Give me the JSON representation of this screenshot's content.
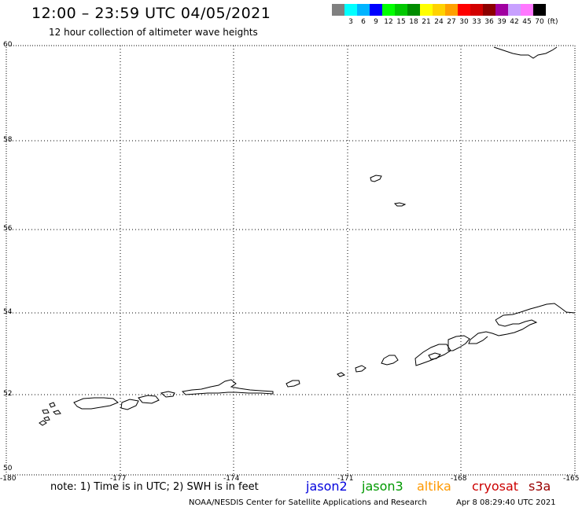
{
  "header": {
    "title": "12:00 – 23:59 UTC 04/05/2021",
    "subtitle": "12 hour collection of altimeter wave heights"
  },
  "legend": {
    "unit": "(ft)",
    "bins": [
      {
        "label": "",
        "color": "#808080"
      },
      {
        "label": "3",
        "color": "#00ffff"
      },
      {
        "label": "6",
        "color": "#00b4ff"
      },
      {
        "label": "9",
        "color": "#0000ff"
      },
      {
        "label": "12",
        "color": "#00ff00"
      },
      {
        "label": "15",
        "color": "#00c800"
      },
      {
        "label": "18",
        "color": "#008c00"
      },
      {
        "label": "21",
        "color": "#ffff00"
      },
      {
        "label": "24",
        "color": "#ffd200"
      },
      {
        "label": "27",
        "color": "#ffa000"
      },
      {
        "label": "30",
        "color": "#ff0000"
      },
      {
        "label": "33",
        "color": "#d20000"
      },
      {
        "label": "36",
        "color": "#8c0000"
      },
      {
        "label": "39",
        "color": "#a000a0"
      },
      {
        "label": "42",
        "color": "#c8a0ff"
      },
      {
        "label": "45",
        "color": "#ff78ff"
      },
      {
        "label": "70",
        "color": "#000000"
      }
    ]
  },
  "map": {
    "lat_labels": [
      "60",
      "58",
      "56",
      "54",
      "52",
      "50"
    ],
    "lon_labels": [
      "-180",
      "-177",
      "-174",
      "-171",
      "-168",
      "-165"
    ]
  },
  "notes": {
    "note": "note: 1) Time is in UTC; 2) SWH is in feet"
  },
  "satellites": [
    {
      "name": "jason2",
      "color": "#0000dd"
    },
    {
      "name": "jason3",
      "color": "#009900"
    },
    {
      "name": "altika",
      "color": "#ff9900"
    },
    {
      "name": "cryosat",
      "color": "#cc0000"
    },
    {
      "name": "s3a",
      "color": "#990000"
    }
  ],
  "footer": {
    "credit": "NOAA/NESDIS Center for Satellite Applications and Research",
    "timestamp": "Apr  8 08:29:40 UTC 2021"
  }
}
